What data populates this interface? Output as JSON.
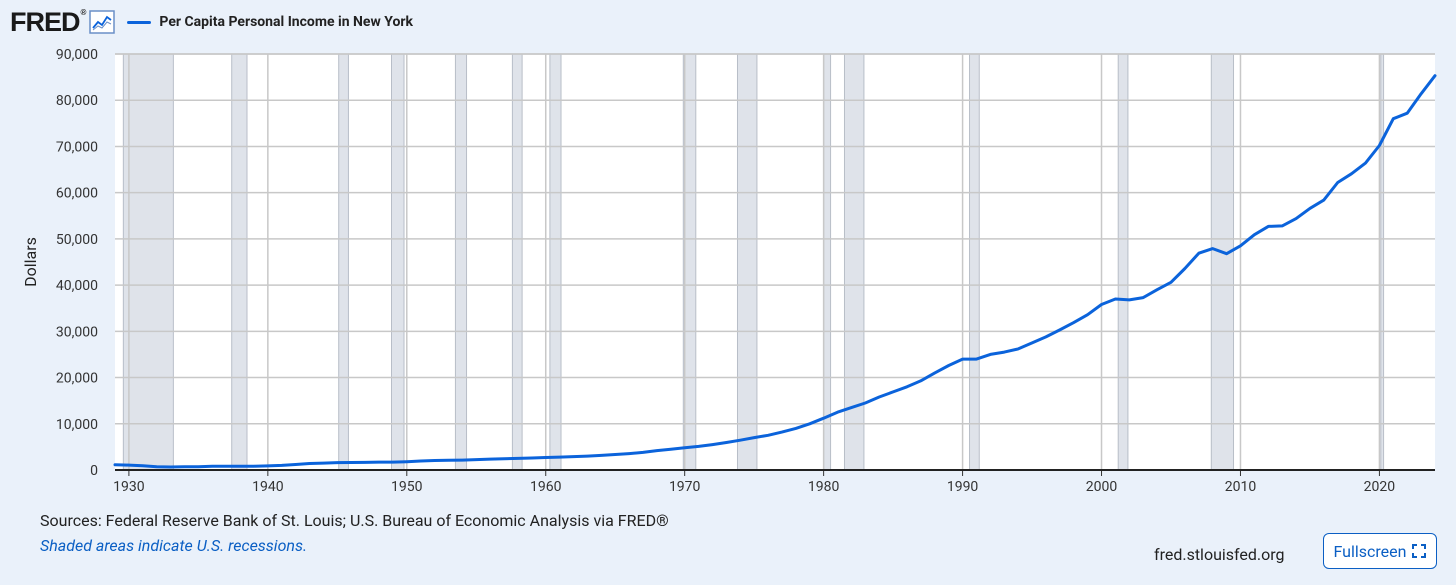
{
  "header": {
    "logo_text": "FRED",
    "logo_mark": "®",
    "legend_label": "Per Capita Personal Income in New York"
  },
  "footer": {
    "sources": "Sources: Federal Reserve Bank of St. Louis; U.S. Bureau of Economic Analysis via FRED®",
    "note": "Shaded areas indicate U.S. recessions.",
    "domain": "fred.stlouisfed.org",
    "fullscreen_label": "Fullscreen"
  },
  "colors": {
    "line": "#0b63db",
    "recession": "#dfe3ea",
    "grid": "#c8c8c8",
    "plot_bg": "#ffffff"
  },
  "chart_data": {
    "type": "line",
    "title": "Per Capita Personal Income in New York",
    "xlabel": "",
    "ylabel": "Dollars",
    "xlim": [
      1929,
      2024
    ],
    "ylim": [
      0,
      90000
    ],
    "grid": true,
    "legend_position": "top-left",
    "x_ticks": [
      1930,
      1940,
      1950,
      1960,
      1970,
      1980,
      1990,
      2000,
      2010,
      2020
    ],
    "y_ticks": [
      {
        "value": 0,
        "label": "0"
      },
      {
        "value": 10000,
        "label": "10,000"
      },
      {
        "value": 20000,
        "label": "20,000"
      },
      {
        "value": 30000,
        "label": "30,000"
      },
      {
        "value": 40000,
        "label": "40,000"
      },
      {
        "value": 50000,
        "label": "50,000"
      },
      {
        "value": 60000,
        "label": "60,000"
      },
      {
        "value": 70000,
        "label": "70,000"
      },
      {
        "value": 80000,
        "label": "80,000"
      },
      {
        "value": 90000,
        "label": "90,000"
      }
    ],
    "recessions": [
      [
        1929.6,
        1933.2
      ],
      [
        1937.4,
        1938.5
      ],
      [
        1945.1,
        1945.8
      ],
      [
        1948.9,
        1949.8
      ],
      [
        1953.5,
        1954.3
      ],
      [
        1957.6,
        1958.3
      ],
      [
        1960.3,
        1961.1
      ],
      [
        1969.9,
        1970.8
      ],
      [
        1973.8,
        1975.2
      ],
      [
        1980.0,
        1980.5
      ],
      [
        1981.5,
        1982.9
      ],
      [
        1990.5,
        1991.2
      ],
      [
        2001.2,
        2001.9
      ],
      [
        2007.9,
        2009.5
      ],
      [
        2020.1,
        2020.3
      ]
    ],
    "series": [
      {
        "name": "Per Capita Personal Income in New York",
        "x": [
          1929,
          1930,
          1931,
          1932,
          1933,
          1934,
          1935,
          1936,
          1937,
          1938,
          1939,
          1940,
          1941,
          1942,
          1943,
          1944,
          1945,
          1946,
          1947,
          1948,
          1949,
          1950,
          1951,
          1952,
          1953,
          1954,
          1955,
          1956,
          1957,
          1958,
          1959,
          1960,
          1961,
          1962,
          1963,
          1964,
          1965,
          1966,
          1967,
          1968,
          1969,
          1970,
          1971,
          1972,
          1973,
          1974,
          1975,
          1976,
          1977,
          1978,
          1979,
          1980,
          1981,
          1982,
          1983,
          1984,
          1985,
          1986,
          1987,
          1988,
          1989,
          1990,
          1991,
          1992,
          1993,
          1994,
          1995,
          1996,
          1997,
          1998,
          1999,
          2000,
          2001,
          2002,
          2003,
          2004,
          2005,
          2006,
          2007,
          2008,
          2009,
          2010,
          2011,
          2012,
          2013,
          2014,
          2015,
          2016,
          2017,
          2018,
          2019,
          2020,
          2021,
          2022,
          2023,
          2024
        ],
        "values": [
          1150,
          1050,
          900,
          700,
          650,
          700,
          720,
          800,
          830,
          800,
          820,
          880,
          1000,
          1200,
          1400,
          1500,
          1600,
          1620,
          1650,
          1700,
          1700,
          1800,
          1950,
          2050,
          2100,
          2150,
          2250,
          2350,
          2450,
          2500,
          2600,
          2700,
          2800,
          2900,
          3000,
          3150,
          3350,
          3550,
          3800,
          4200,
          4500,
          4800,
          5100,
          5500,
          5950,
          6450,
          7000,
          7500,
          8200,
          9000,
          10000,
          11200,
          12500,
          13500,
          14500,
          15800,
          16900,
          18000,
          19300,
          21000,
          22600,
          24000,
          24000,
          25000,
          25500,
          26200,
          27500,
          28800,
          30300,
          31900,
          33600,
          35800,
          37000,
          36800,
          37300,
          39000,
          40600,
          43600,
          46900,
          47900,
          46800,
          48500,
          50900,
          52700,
          52800,
          54400,
          56600,
          58400,
          62200,
          64100,
          66400,
          70200,
          76000,
          77200,
          81400,
          85300
        ]
      }
    ]
  }
}
